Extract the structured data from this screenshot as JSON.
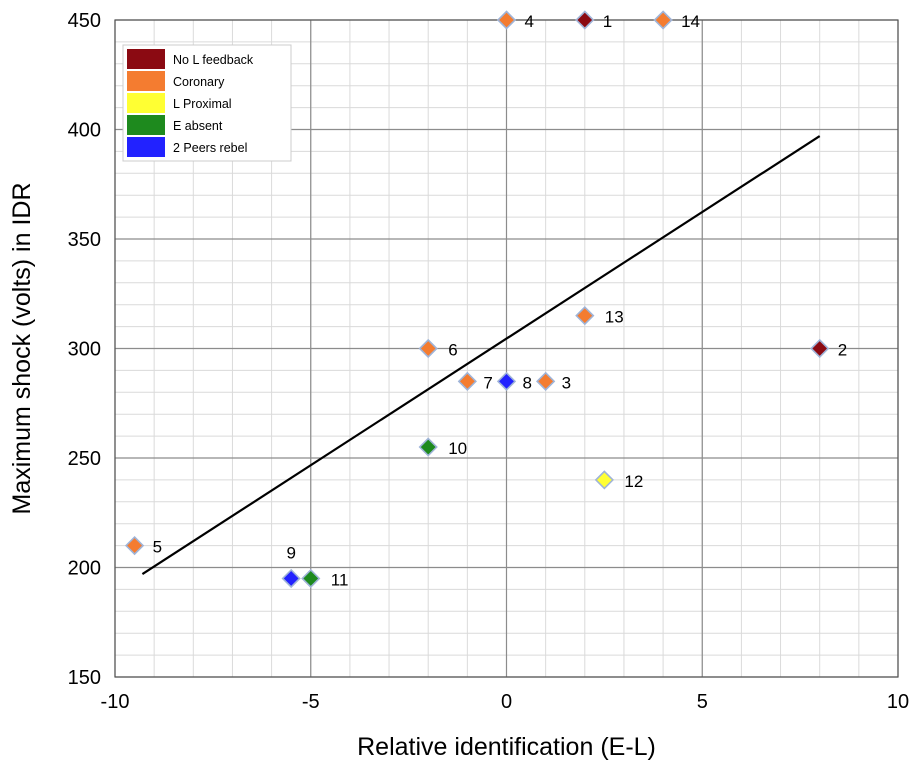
{
  "chart_data": {
    "type": "scatter",
    "xlabel": "Relative identification (E-L)",
    "ylabel": "Maximum shock (volts) in IDR",
    "xlim": [
      -10,
      10
    ],
    "ylim": [
      150,
      450
    ],
    "x_ticks": [
      "-10",
      "-5",
      "0",
      "5",
      "10"
    ],
    "y_ticks": [
      "150",
      "200",
      "250",
      "300",
      "350",
      "400",
      "450"
    ],
    "grid": true,
    "legend_position": "top-left",
    "series": [
      {
        "name": "No L feedback",
        "color": "#8b0a12",
        "points": [
          {
            "label": "1",
            "x": 2,
            "y": 450
          },
          {
            "label": "2",
            "x": 8,
            "y": 300
          }
        ]
      },
      {
        "name": "Coronary",
        "color": "#f47c30",
        "points": [
          {
            "label": "4",
            "x": 0,
            "y": 450
          },
          {
            "label": "14",
            "x": 4,
            "y": 450
          },
          {
            "label": "13",
            "x": 2,
            "y": 315
          },
          {
            "label": "6",
            "x": -2,
            "y": 300
          },
          {
            "label": "7",
            "x": -1,
            "y": 285
          },
          {
            "label": "3",
            "x": 1,
            "y": 285
          },
          {
            "label": "5",
            "x": -9.5,
            "y": 210
          }
        ]
      },
      {
        "name": "L Proximal",
        "color": "#ffff33",
        "points": [
          {
            "label": "12",
            "x": 2.5,
            "y": 240
          }
        ]
      },
      {
        "name": "E absent",
        "color": "#1e8a1e",
        "points": [
          {
            "label": "10",
            "x": -2,
            "y": 255
          },
          {
            "label": "11",
            "x": -5,
            "y": 195
          }
        ]
      },
      {
        "name": "2 Peers rebel",
        "color": "#2222ff",
        "points": [
          {
            "label": "8",
            "x": 0,
            "y": 285
          },
          {
            "label": "9",
            "x": -5.5,
            "y": 195
          }
        ]
      }
    ],
    "trendline": {
      "x": [
        -9.3,
        8
      ],
      "y": [
        197,
        397
      ]
    }
  }
}
